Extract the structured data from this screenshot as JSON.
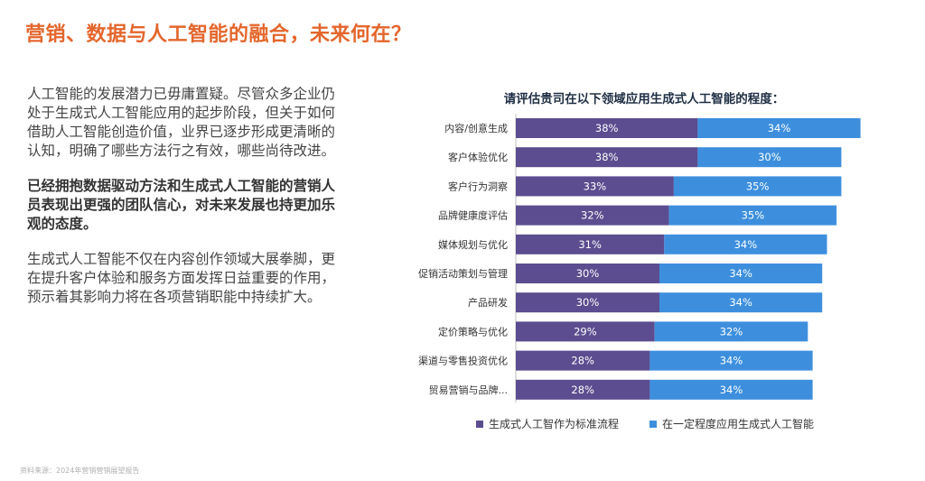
{
  "page": {
    "title": "营销、数据与人工智能的融合，未来何在？",
    "paragraphs": [
      "人工智能的发展潜力已毋庸置疑。尽管众多企业仍处于生成式人工智能应用的起步阶段，但关于如何借助人工智能创造价值，业界已逐步形成更清晰的认知，明确了哪些方法行之有效，哪些尚待改进。",
      "已经拥抱数据驱动方法和生成式人工智能的营销人员表现出更强的团队信心，对未来发展也持更加乐观的态度。",
      "生成式人工智能不仅在内容创作领域大展拳脚，更在提升客户体验和服务方面发挥日益重要的作用，预示着其影响力将在各项营销职能中持续扩大。"
    ],
    "source": "资料来源：2024年营销营销展望报告"
  },
  "chart_data": {
    "type": "bar",
    "orientation": "horizontal",
    "stacked": true,
    "title": "请评估贵司在以下领域应用生成式人工智能的程度：",
    "categories": [
      "内容/创意生成",
      "客户体验优化",
      "客户行为洞察",
      "品牌健康度评估",
      "媒体规划与优化",
      "促销活动策划与管理",
      "产品研发",
      "定价策略与优化",
      "渠道与零售投资优化",
      "贸易营销与品牌..."
    ],
    "series": [
      {
        "name": "生成式人工智作为标准流程",
        "values": [
          38,
          38,
          33,
          32,
          31,
          30,
          30,
          29,
          28,
          28
        ],
        "color": "#5b4d8f"
      },
      {
        "name": "在一定程度应用生成式人工智能",
        "values": [
          34,
          30,
          35,
          35,
          34,
          34,
          34,
          32,
          34,
          34
        ],
        "color": "#3d8fde"
      }
    ],
    "value_suffix": "%",
    "legend_position": "bottom",
    "grid": false
  }
}
